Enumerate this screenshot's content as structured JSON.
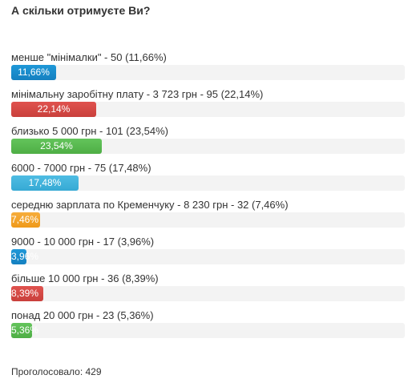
{
  "poll": {
    "title": "А скільки отримуєте Ви?",
    "options": [
      {
        "label": "менше \"мінімалки\" - 50 (11,66%)",
        "percent": 11.66,
        "percent_label": "11,66%",
        "color": "#1a8cce"
      },
      {
        "label": "мінімальну заробітну плату - 3 723 грн - 95 (22,14%)",
        "percent": 22.14,
        "percent_label": "22,14%",
        "color": "#d84a46"
      },
      {
        "label": "близько 5 000 грн - 101 (23,54%)",
        "percent": 23.54,
        "percent_label": "23,54%",
        "color": "#59bb50"
      },
      {
        "label": "6000 - 7000 грн - 75 (17,48%)",
        "percent": 17.48,
        "percent_label": "17,48%",
        "color": "#45b4dd"
      },
      {
        "label": "середню зарплата по Кременчуку - 8 230 грн - 32 (7,46%)",
        "percent": 7.46,
        "percent_label": "7,46%",
        "color": "#f2a32a"
      },
      {
        "label": "9000 - 10 000 грн - 17 (3,96%)",
        "percent": 3.96,
        "percent_label": "3,96%",
        "color": "#1a8cce"
      },
      {
        "label": "більше 10 000 грн - 36 (8,39%)",
        "percent": 8.39,
        "percent_label": "8,39%",
        "color": "#d84a46"
      },
      {
        "label": "понад 20 000 грн - 23 (5,36%)",
        "percent": 5.36,
        "percent_label": "5,36%",
        "color": "#59bb50"
      }
    ],
    "total_label": "Проголосовало: 429"
  }
}
